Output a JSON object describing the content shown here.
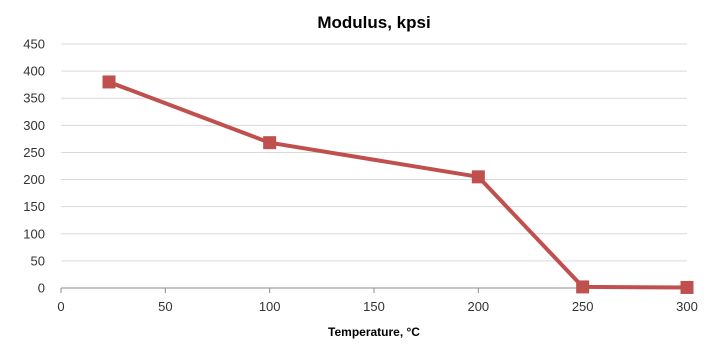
{
  "chart_data": {
    "type": "line",
    "title": "Modulus, kpsi",
    "xlabel": "Temperature, °C",
    "ylabel": "",
    "xlim": [
      0,
      300
    ],
    "ylim": [
      0,
      450
    ],
    "xticks": [
      "0",
      "50",
      "100",
      "150",
      "200",
      "250",
      "300"
    ],
    "yticks": [
      "0",
      "50",
      "100",
      "150",
      "200",
      "250",
      "300",
      "350",
      "400",
      "450"
    ],
    "grid": true,
    "legend": "none",
    "series": [
      {
        "color": "#c0504d",
        "marker": "square",
        "x": [
          23,
          100,
          200,
          250,
          300
        ],
        "y": [
          380,
          268,
          205,
          2,
          1
        ]
      }
    ]
  }
}
